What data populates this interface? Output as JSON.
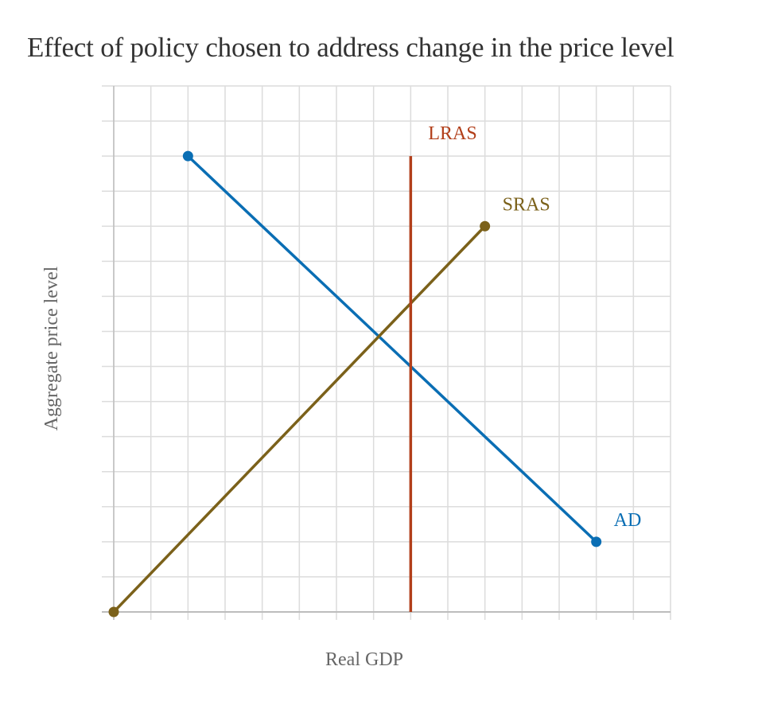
{
  "chart_data": {
    "type": "line",
    "title": "Effect of policy chosen to address change in the price level",
    "xlabel": "Real GDP",
    "ylabel": "Aggregate price level",
    "xlim": [
      0,
      15
    ],
    "ylim": [
      0,
      15
    ],
    "grid": true,
    "x_ticks": [
      0,
      1,
      2,
      3,
      4,
      5,
      6,
      7,
      8,
      9,
      10,
      11,
      12,
      13,
      14,
      15
    ],
    "y_ticks": [
      0,
      1,
      2,
      3,
      4,
      5,
      6,
      7,
      8,
      9,
      10,
      11,
      12,
      13,
      14,
      15
    ],
    "tick_labels_visible": false,
    "series": [
      {
        "name": "AD",
        "label": "AD",
        "color": "#0a6eb4",
        "points": [
          [
            2,
            13
          ],
          [
            13,
            2
          ]
        ],
        "markers": true,
        "label_anchor": "end"
      },
      {
        "name": "SRAS",
        "label": "SRAS",
        "color": "#7b611a",
        "points": [
          [
            0,
            0
          ],
          [
            10,
            11
          ]
        ],
        "markers": true,
        "label_anchor": "end"
      },
      {
        "name": "LRAS",
        "label": "LRAS",
        "color": "#b23f1a",
        "points": [
          [
            8,
            0
          ],
          [
            8,
            13
          ]
        ],
        "markers": false,
        "label_anchor": "end"
      }
    ]
  }
}
